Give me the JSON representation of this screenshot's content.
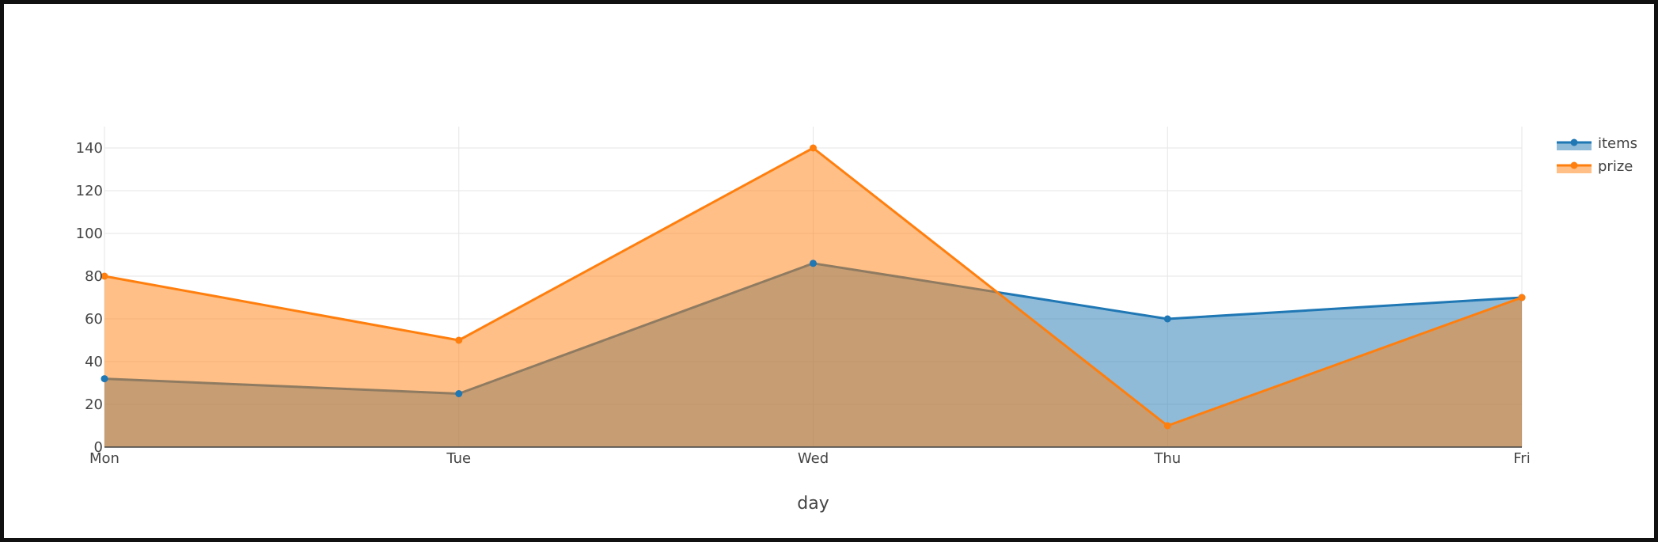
{
  "chart_data": {
    "type": "area",
    "xlabel": "day",
    "ylabel": "",
    "categories": [
      "Mon",
      "Tue",
      "Wed",
      "Thu",
      "Fri"
    ],
    "ylim": [
      0,
      150
    ],
    "yticks": [
      0,
      20,
      40,
      60,
      80,
      100,
      120,
      140
    ],
    "grid": true,
    "legend_position": "top-right",
    "series": [
      {
        "name": "items",
        "values": [
          32,
          25,
          86,
          60,
          70
        ],
        "color": "#1f77b4"
      },
      {
        "name": "prize",
        "values": [
          80,
          50,
          140,
          10,
          70
        ],
        "color": "#ff7f0e"
      }
    ]
  }
}
